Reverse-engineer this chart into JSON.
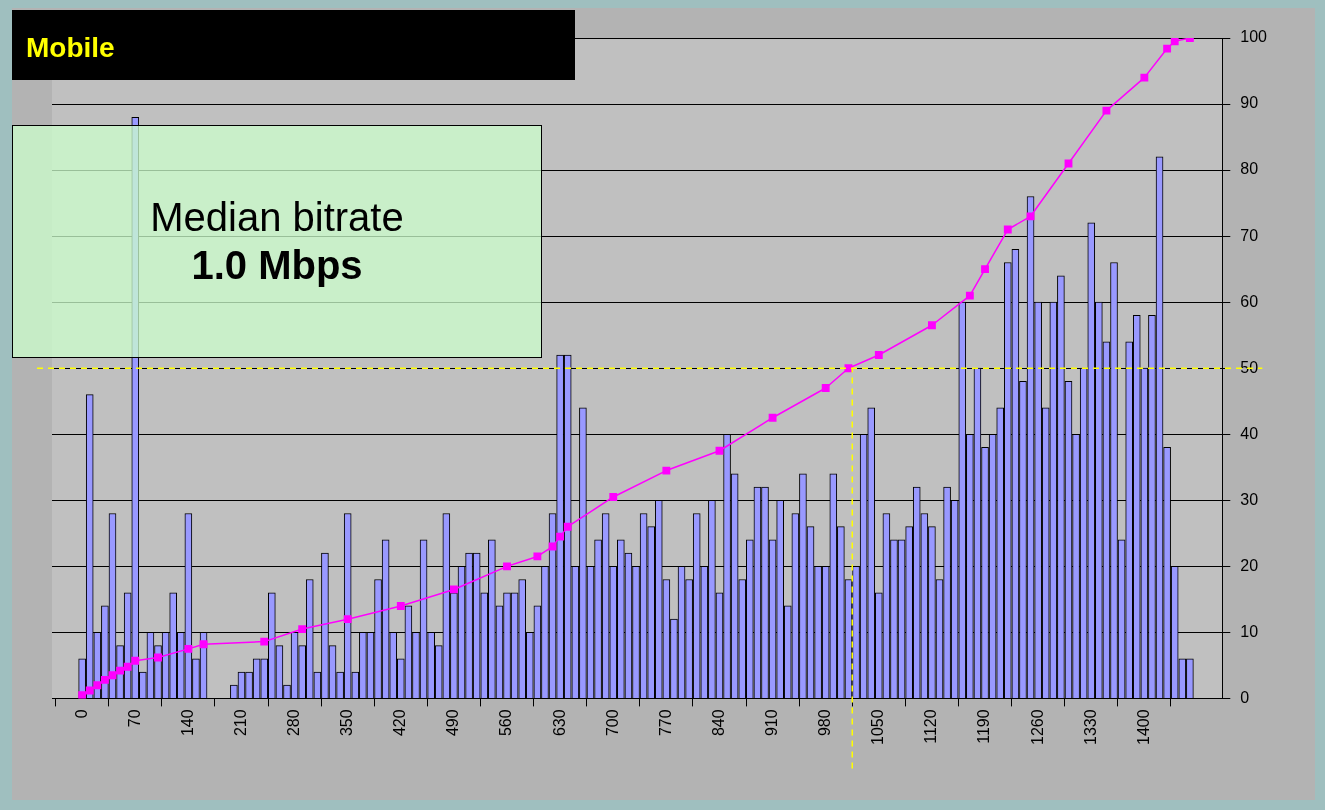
{
  "chart_data": {
    "type": "bar",
    "title": "Mobile",
    "annotations": [
      "Median bitrate",
      "1.0 Mbps"
    ],
    "x": [
      0,
      10,
      20,
      30,
      40,
      50,
      60,
      70,
      80,
      90,
      100,
      110,
      120,
      130,
      140,
      150,
      160,
      170,
      180,
      190,
      200,
      210,
      220,
      230,
      240,
      250,
      260,
      270,
      280,
      290,
      300,
      310,
      320,
      330,
      340,
      350,
      360,
      370,
      380,
      390,
      400,
      410,
      420,
      430,
      440,
      450,
      460,
      470,
      480,
      490,
      500,
      510,
      520,
      530,
      540,
      550,
      560,
      570,
      580,
      590,
      600,
      610,
      620,
      630,
      640,
      650,
      660,
      670,
      680,
      690,
      700,
      710,
      720,
      730,
      740,
      750,
      760,
      770,
      780,
      790,
      800,
      810,
      820,
      830,
      840,
      850,
      860,
      870,
      880,
      890,
      900,
      910,
      920,
      930,
      940,
      950,
      960,
      970,
      980,
      990,
      1000,
      1010,
      1020,
      1030,
      1040,
      1050,
      1060,
      1070,
      1080,
      1090,
      1100,
      1110,
      1120,
      1130,
      1140,
      1150,
      1160,
      1170,
      1180,
      1190,
      1200,
      1210,
      1220,
      1230,
      1240,
      1250,
      1260,
      1270,
      1280,
      1290,
      1300,
      1310,
      1320,
      1330,
      1340,
      1350,
      1360,
      1370,
      1380,
      1390,
      1400,
      1410,
      1420,
      1430,
      1440,
      1450,
      1460
    ],
    "series": [
      {
        "color": "#9999ff",
        "values": [
          6,
          46,
          10,
          14,
          28,
          8,
          16,
          88,
          4,
          10,
          8,
          10,
          16,
          10,
          28,
          6,
          10,
          0,
          0,
          0,
          2,
          4,
          4,
          6,
          6,
          16,
          8,
          2,
          10,
          8,
          18,
          4,
          22,
          8,
          4,
          28,
          4,
          10,
          10,
          18,
          24,
          10,
          6,
          14,
          10,
          24,
          10,
          8,
          28,
          16,
          20,
          22,
          22,
          16,
          24,
          14,
          16,
          16,
          18,
          10,
          14,
          20,
          28,
          52,
          52,
          20,
          44,
          20,
          24,
          28,
          20,
          24,
          22,
          20,
          28,
          26,
          30,
          18,
          12,
          20,
          18,
          28,
          20,
          30,
          16,
          40,
          34,
          18,
          24,
          32,
          32,
          24,
          30,
          14,
          28,
          34,
          26,
          20,
          20,
          34,
          26,
          18,
          20,
          40,
          44,
          16,
          28,
          24,
          24,
          26,
          32,
          28,
          26,
          18,
          32,
          30,
          60,
          40,
          50,
          38,
          40,
          44,
          66,
          68,
          48,
          76,
          60,
          44,
          60,
          64,
          48,
          40,
          50,
          72,
          60,
          54,
          66,
          24,
          54,
          58,
          50,
          58,
          82,
          38,
          20,
          6,
          6
        ]
      },
      {
        "type": "line",
        "color": "#ff00ff",
        "x": [
          0,
          10,
          20,
          30,
          40,
          50,
          60,
          70,
          100,
          140,
          160,
          240,
          290,
          350,
          420,
          490,
          560,
          600,
          620,
          630,
          640,
          700,
          770,
          840,
          910,
          980,
          1010,
          1050,
          1120,
          1170,
          1190,
          1220,
          1250,
          1300,
          1350,
          1400,
          1430,
          1440,
          1460
        ],
        "values": [
          0.5,
          1.2,
          2,
          2.8,
          3.5,
          4.2,
          4.8,
          5.7,
          6.2,
          7.5,
          8.2,
          8.6,
          10.5,
          12,
          14,
          16.5,
          20,
          21.5,
          23,
          24.5,
          26,
          30.5,
          34.5,
          37.5,
          42.5,
          47,
          50,
          52,
          56.5,
          61,
          65,
          71,
          73,
          81,
          89,
          94,
          98.4,
          99.5,
          100
        ]
      }
    ],
    "xlim": [
      -3,
      1466
    ],
    "xticks": [
      0,
      70,
      140,
      210,
      280,
      350,
      420,
      490,
      560,
      630,
      700,
      770,
      840,
      910,
      980,
      1050,
      1120,
      1190,
      1260,
      1330,
      1400
    ],
    "ylim": [
      0,
      100
    ],
    "yticks": [
      0,
      10,
      20,
      30,
      40,
      50,
      60,
      70,
      80,
      90,
      100
    ],
    "grid": "y",
    "marker": "square",
    "ref_lines": [
      {
        "axis": "y",
        "value": 50,
        "color": "#ffff00",
        "line_style": "dashed"
      },
      {
        "axis": "x",
        "value": 1015,
        "color": "#ffff00",
        "line_style": "dashed"
      }
    ]
  }
}
